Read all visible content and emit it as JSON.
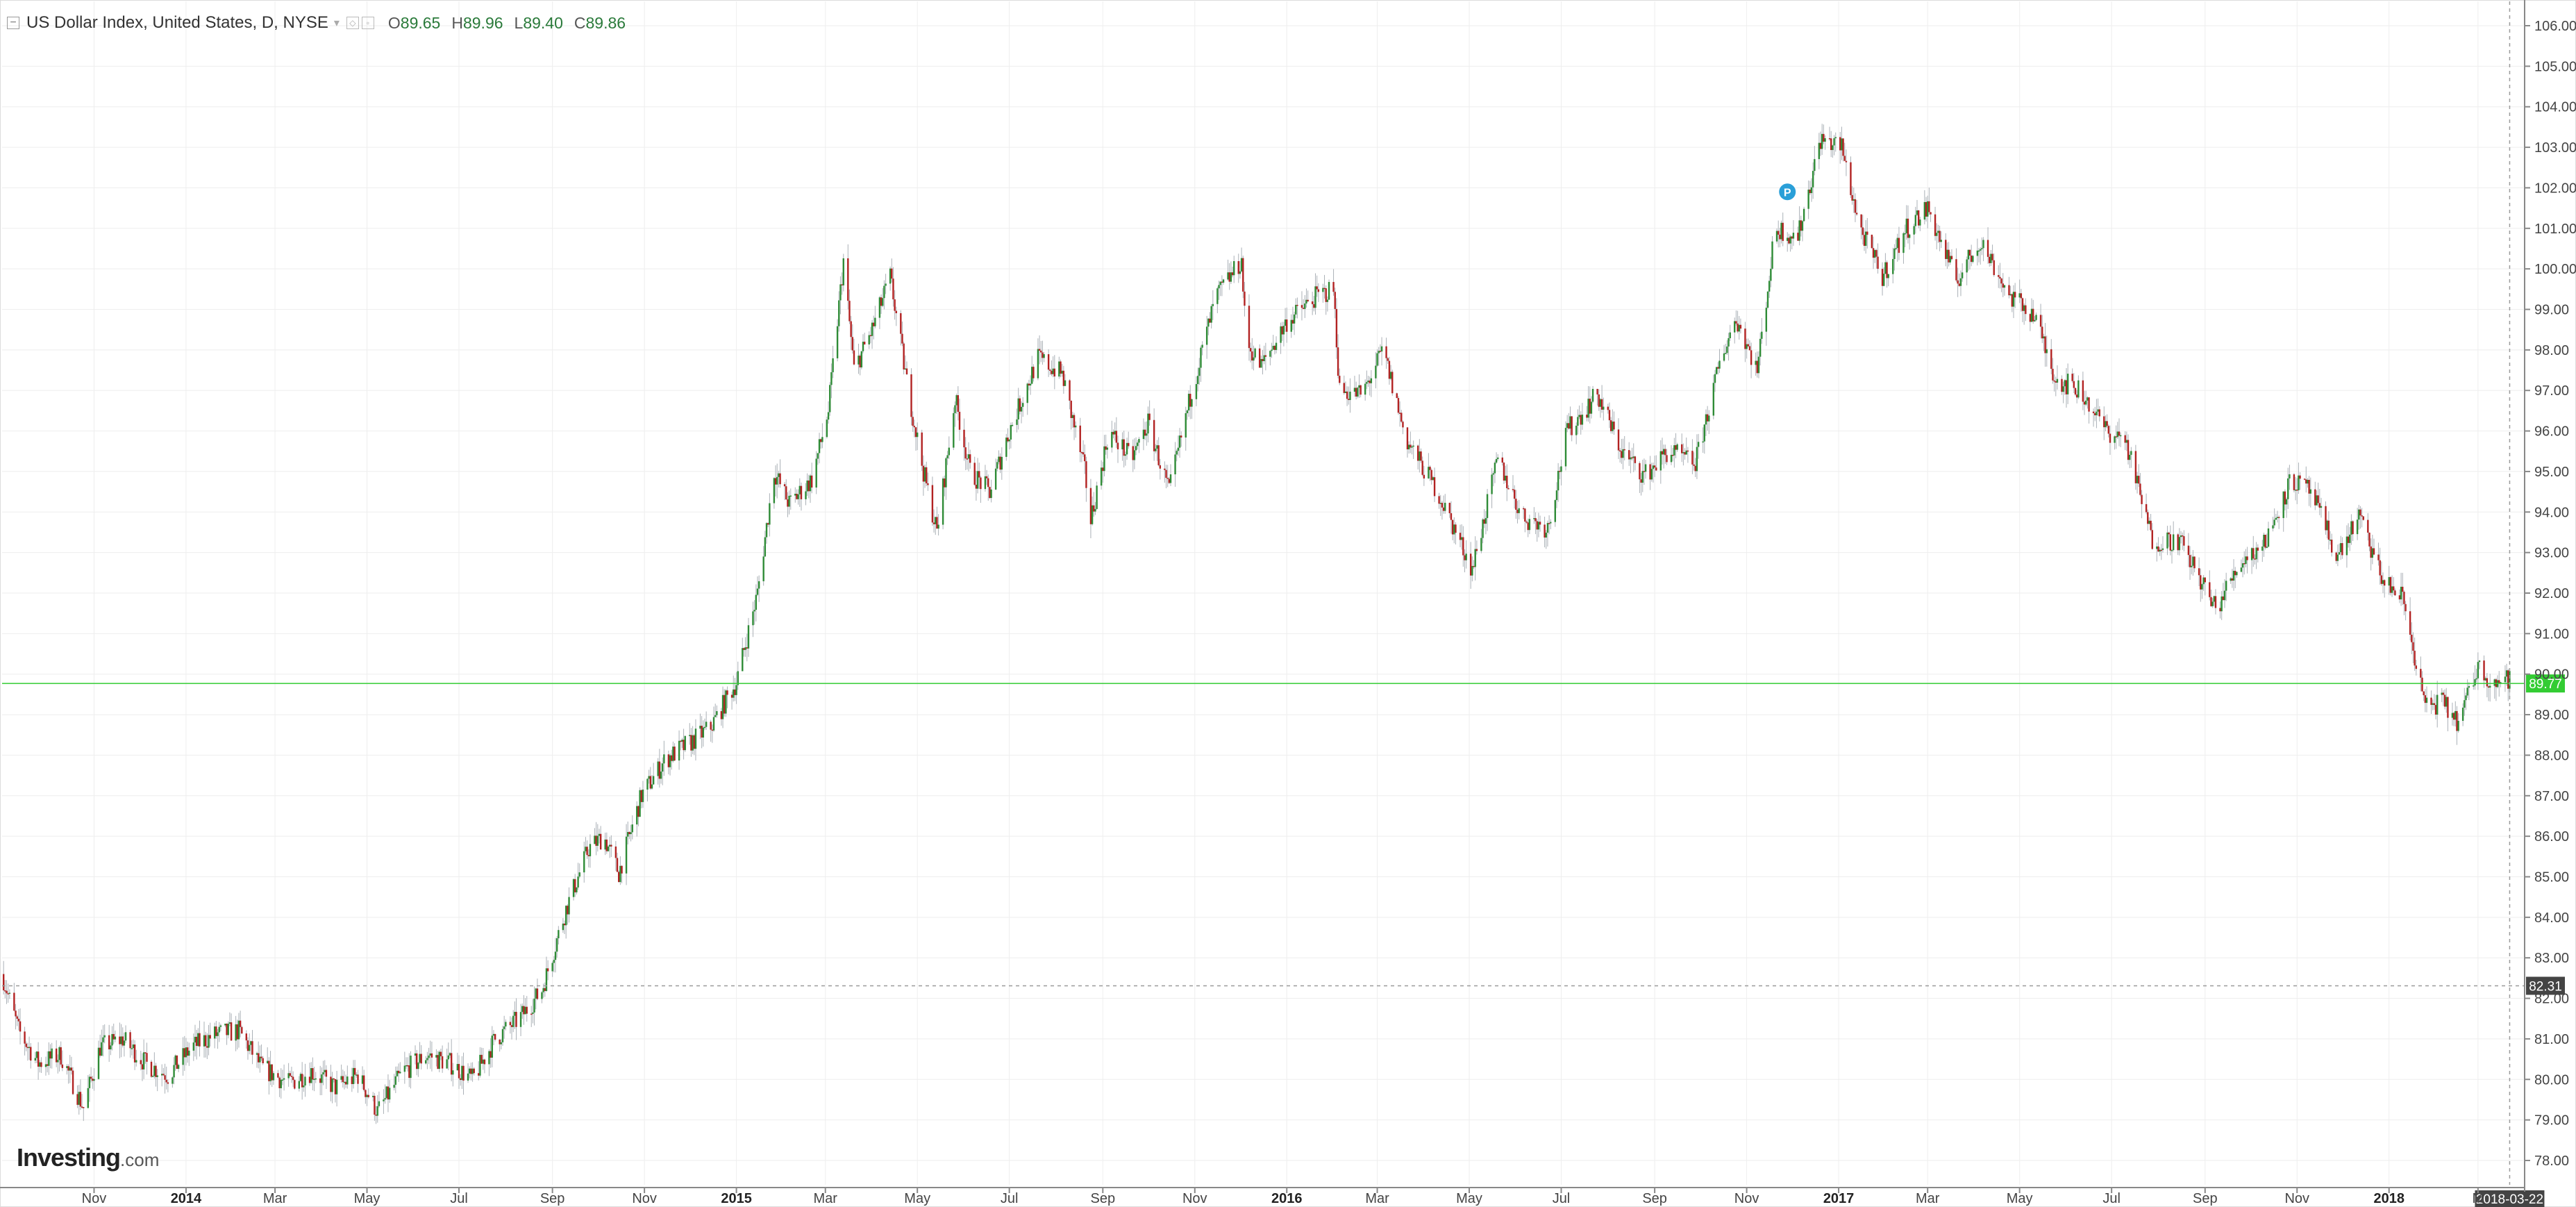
{
  "header": {
    "title": "US Dollar Index, United States, D, NYSE",
    "open_label": "O",
    "open_value": "89.65",
    "high_label": "H",
    "high_value": "89.96",
    "low_label": "L",
    "low_value": "89.40",
    "close_label": "C",
    "close_value": "89.86"
  },
  "logo": {
    "brand": "Investing",
    "suffix": ".com"
  },
  "marker": {
    "label": "P"
  },
  "colors": {
    "up": "#2e8b36",
    "down": "#b22222",
    "price_line": "#33cc33",
    "price_badge": "#33cc33",
    "crosshair_badge": "#444444"
  },
  "chart_data": {
    "type": "candlestick",
    "title": "US Dollar Index, United States, D, NYSE",
    "xlabel": "",
    "ylabel": "",
    "ylim": [
      77.4,
      106.6
    ],
    "grid": true,
    "y_ticks": [
      "78.00",
      "79.00",
      "80.00",
      "81.00",
      "82.00",
      "83.00",
      "84.00",
      "85.00",
      "86.00",
      "87.00",
      "88.00",
      "89.00",
      "90.00",
      "91.00",
      "92.00",
      "93.00",
      "94.00",
      "95.00",
      "96.00",
      "97.00",
      "98.00",
      "99.00",
      "100.00",
      "101.00",
      "102.00",
      "103.00",
      "104.00",
      "105.00",
      "106.00"
    ],
    "x_ticks": [
      "Nov",
      "2014",
      "Mar",
      "May",
      "Jul",
      "Sep",
      "Nov",
      "2015",
      "Mar",
      "May",
      "Jul",
      "Sep",
      "Nov",
      "2016",
      "Mar",
      "May",
      "Jul",
      "Sep",
      "Nov",
      "2017",
      "Mar",
      "May",
      "Jul",
      "Sep",
      "Nov",
      "2018",
      "M"
    ],
    "current_price": "89.77",
    "crosshair_price": "82.31",
    "crosshair_date": "2018-03-22",
    "series_path": [
      [
        "2013-09-01",
        82.6
      ],
      [
        "2013-09-12",
        81.2
      ],
      [
        "2013-09-25",
        80.4
      ],
      [
        "2013-10-10",
        80.6
      ],
      [
        "2013-10-25",
        79.3
      ],
      [
        "2013-11-05",
        80.8
      ],
      [
        "2013-11-20",
        81.0
      ],
      [
        "2013-12-05",
        80.4
      ],
      [
        "2013-12-20",
        80.1
      ],
      [
        "2014-01-05",
        80.8
      ],
      [
        "2014-01-20",
        81.1
      ],
      [
        "2014-02-05",
        81.2
      ],
      [
        "2014-02-20",
        80.3
      ],
      [
        "2014-03-10",
        79.9
      ],
      [
        "2014-03-25",
        80.2
      ],
      [
        "2014-04-10",
        79.8
      ],
      [
        "2014-04-25",
        80.1
      ],
      [
        "2014-05-08",
        79.2
      ],
      [
        "2014-05-25",
        80.2
      ],
      [
        "2014-06-10",
        80.6
      ],
      [
        "2014-06-25",
        80.4
      ],
      [
        "2014-07-10",
        80.0
      ],
      [
        "2014-07-25",
        81.0
      ],
      [
        "2014-08-10",
        81.5
      ],
      [
        "2014-08-25",
        82.2
      ],
      [
        "2014-09-10",
        84.2
      ],
      [
        "2014-09-25",
        85.7
      ],
      [
        "2014-10-05",
        86.0
      ],
      [
        "2014-10-15",
        85.1
      ],
      [
        "2014-10-30",
        87.0
      ],
      [
        "2014-11-15",
        87.9
      ],
      [
        "2014-12-01",
        88.3
      ],
      [
        "2014-12-15",
        88.7
      ],
      [
        "2015-01-01",
        89.8
      ],
      [
        "2015-01-15",
        92.0
      ],
      [
        "2015-01-26",
        95.0
      ],
      [
        "2015-02-05",
        94.2
      ],
      [
        "2015-02-20",
        94.8
      ],
      [
        "2015-03-03",
        96.5
      ],
      [
        "2015-03-13",
        100.2
      ],
      [
        "2015-03-20",
        97.5
      ],
      [
        "2015-04-01",
        98.5
      ],
      [
        "2015-04-13",
        99.8
      ],
      [
        "2015-04-24",
        97.2
      ],
      [
        "2015-05-05",
        95.0
      ],
      [
        "2015-05-14",
        93.5
      ],
      [
        "2015-05-26",
        96.8
      ],
      [
        "2015-06-05",
        95.0
      ],
      [
        "2015-06-18",
        94.5
      ],
      [
        "2015-07-01",
        96.0
      ],
      [
        "2015-07-20",
        97.8
      ],
      [
        "2015-08-05",
        97.4
      ],
      [
        "2015-08-20",
        95.0
      ],
      [
        "2015-08-24",
        93.8
      ],
      [
        "2015-09-05",
        96.0
      ],
      [
        "2015-09-20",
        95.3
      ],
      [
        "2015-10-01",
        96.2
      ],
      [
        "2015-10-15",
        94.5
      ],
      [
        "2015-10-30",
        97.0
      ],
      [
        "2015-11-15",
        99.3
      ],
      [
        "2015-12-02",
        100.2
      ],
      [
        "2015-12-05",
        98.2
      ],
      [
        "2015-12-15",
        97.6
      ],
      [
        "2016-01-01",
        98.7
      ],
      [
        "2016-01-20",
        99.3
      ],
      [
        "2016-02-01",
        99.5
      ],
      [
        "2016-02-05",
        97.0
      ],
      [
        "2016-02-20",
        96.9
      ],
      [
        "2016-03-05",
        98.0
      ],
      [
        "2016-03-20",
        95.8
      ],
      [
        "2016-04-10",
        94.5
      ],
      [
        "2016-05-03",
        92.6
      ],
      [
        "2016-05-20",
        95.3
      ],
      [
        "2016-06-05",
        93.9
      ],
      [
        "2016-06-22",
        93.6
      ],
      [
        "2016-07-05",
        96.0
      ],
      [
        "2016-07-25",
        96.9
      ],
      [
        "2016-08-10",
        95.5
      ],
      [
        "2016-08-25",
        94.9
      ],
      [
        "2016-09-10",
        95.5
      ],
      [
        "2016-09-28",
        95.2
      ],
      [
        "2016-10-15",
        97.8
      ],
      [
        "2016-10-25",
        98.8
      ],
      [
        "2016-11-08",
        97.5
      ],
      [
        "2016-11-20",
        101.0
      ],
      [
        "2016-12-05",
        100.8
      ],
      [
        "2016-12-20",
        103.2
      ],
      [
        "2017-01-03",
        103.0
      ],
      [
        "2017-01-15",
        101.0
      ],
      [
        "2017-01-30",
        99.8
      ],
      [
        "2017-02-15",
        101.0
      ],
      [
        "2017-03-01",
        101.5
      ],
      [
        "2017-03-20",
        99.7
      ],
      [
        "2017-04-05",
        100.7
      ],
      [
        "2017-04-25",
        99.3
      ],
      [
        "2017-05-10",
        98.9
      ],
      [
        "2017-05-25",
        97.3
      ],
      [
        "2017-06-10",
        97.0
      ],
      [
        "2017-06-28",
        96.0
      ],
      [
        "2017-07-10",
        95.8
      ],
      [
        "2017-07-28",
        93.3
      ],
      [
        "2017-08-15",
        93.3
      ],
      [
        "2017-09-08",
        91.6
      ],
      [
        "2017-09-25",
        92.8
      ],
      [
        "2017-10-10",
        93.2
      ],
      [
        "2017-10-28",
        94.8
      ],
      [
        "2017-11-10",
        94.5
      ],
      [
        "2017-11-28",
        92.9
      ],
      [
        "2017-12-12",
        93.9
      ],
      [
        "2017-12-28",
        92.3
      ],
      [
        "2018-01-10",
        91.9
      ],
      [
        "2018-01-25",
        89.2
      ],
      [
        "2018-02-05",
        89.3
      ],
      [
        "2018-02-16",
        88.8
      ],
      [
        "2018-03-01",
        90.2
      ],
      [
        "2018-03-10",
        89.8
      ],
      [
        "2018-03-22",
        89.86
      ]
    ]
  }
}
